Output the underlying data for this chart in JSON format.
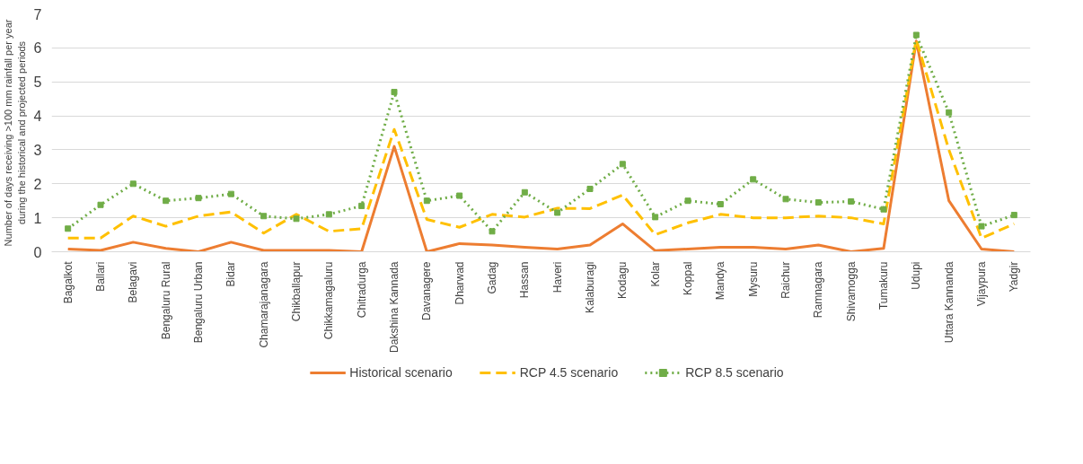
{
  "chart_data": {
    "type": "line",
    "ylabel": "Number of days receiving >100 mm rainfall per year during the historical and projected periods",
    "categories": [
      "Bagalkot",
      "Ballari",
      "Belagavi",
      "Bengaluru Rural",
      "Bengaluru Urban",
      "Bidar",
      "Chamarajanagara",
      "Chikballapur",
      "Chikkamagaluru",
      "Chitradurga",
      "Dakshina Kannada",
      "Davanagere",
      "Dharwad",
      "Gadag",
      "Hassan",
      "Haveri",
      "Kalaburagi",
      "Kodagu",
      "Kolar",
      "Koppal",
      "Mandya",
      "Mysuru",
      "Raichur",
      "Ramnagara",
      "Shivamogga",
      "Tumakuru",
      "Udupi",
      "Uttara Kannanda",
      "Vijaypura",
      "Yadgir"
    ],
    "series": [
      {
        "name": "Historical scenario",
        "color": "#ed7d31",
        "line_style": "solid",
        "marker": "none",
        "values": [
          0.08,
          0.04,
          0.28,
          0.1,
          0.0,
          0.28,
          0.04,
          0.04,
          0.04,
          0.0,
          3.1,
          0.0,
          0.24,
          0.2,
          0.13,
          0.08,
          0.2,
          0.82,
          0.03,
          0.08,
          0.13,
          0.13,
          0.08,
          0.2,
          0.0,
          0.1,
          6.2,
          1.5,
          0.08,
          0.0
        ]
      },
      {
        "name": "RCP 4.5 scenario",
        "color": "#ffc000",
        "line_style": "dashed",
        "marker": "none",
        "values": [
          0.4,
          0.4,
          1.05,
          0.75,
          1.05,
          1.17,
          0.55,
          1.1,
          0.6,
          0.68,
          3.6,
          0.95,
          0.72,
          1.1,
          1.02,
          1.28,
          1.27,
          1.67,
          0.5,
          0.85,
          1.1,
          1.0,
          1.0,
          1.05,
          1.0,
          0.82,
          6.25,
          3.0,
          0.4,
          0.82
        ]
      },
      {
        "name": "RCP 8.5 scenario",
        "color": "#70ad47",
        "line_style": "dotted",
        "marker": "square",
        "values": [
          0.68,
          1.38,
          2.0,
          1.5,
          1.58,
          1.7,
          1.05,
          0.97,
          1.1,
          1.35,
          4.7,
          1.5,
          1.65,
          0.6,
          1.75,
          1.15,
          1.85,
          2.58,
          1.02,
          1.5,
          1.4,
          2.13,
          1.55,
          1.45,
          1.48,
          1.25,
          6.38,
          4.1,
          0.75,
          1.08
        ]
      }
    ],
    "ylim": [
      0,
      7
    ],
    "yticks": [
      0,
      1,
      2,
      3,
      4,
      5,
      6,
      7
    ],
    "grid": "y",
    "legend": "bottom"
  }
}
